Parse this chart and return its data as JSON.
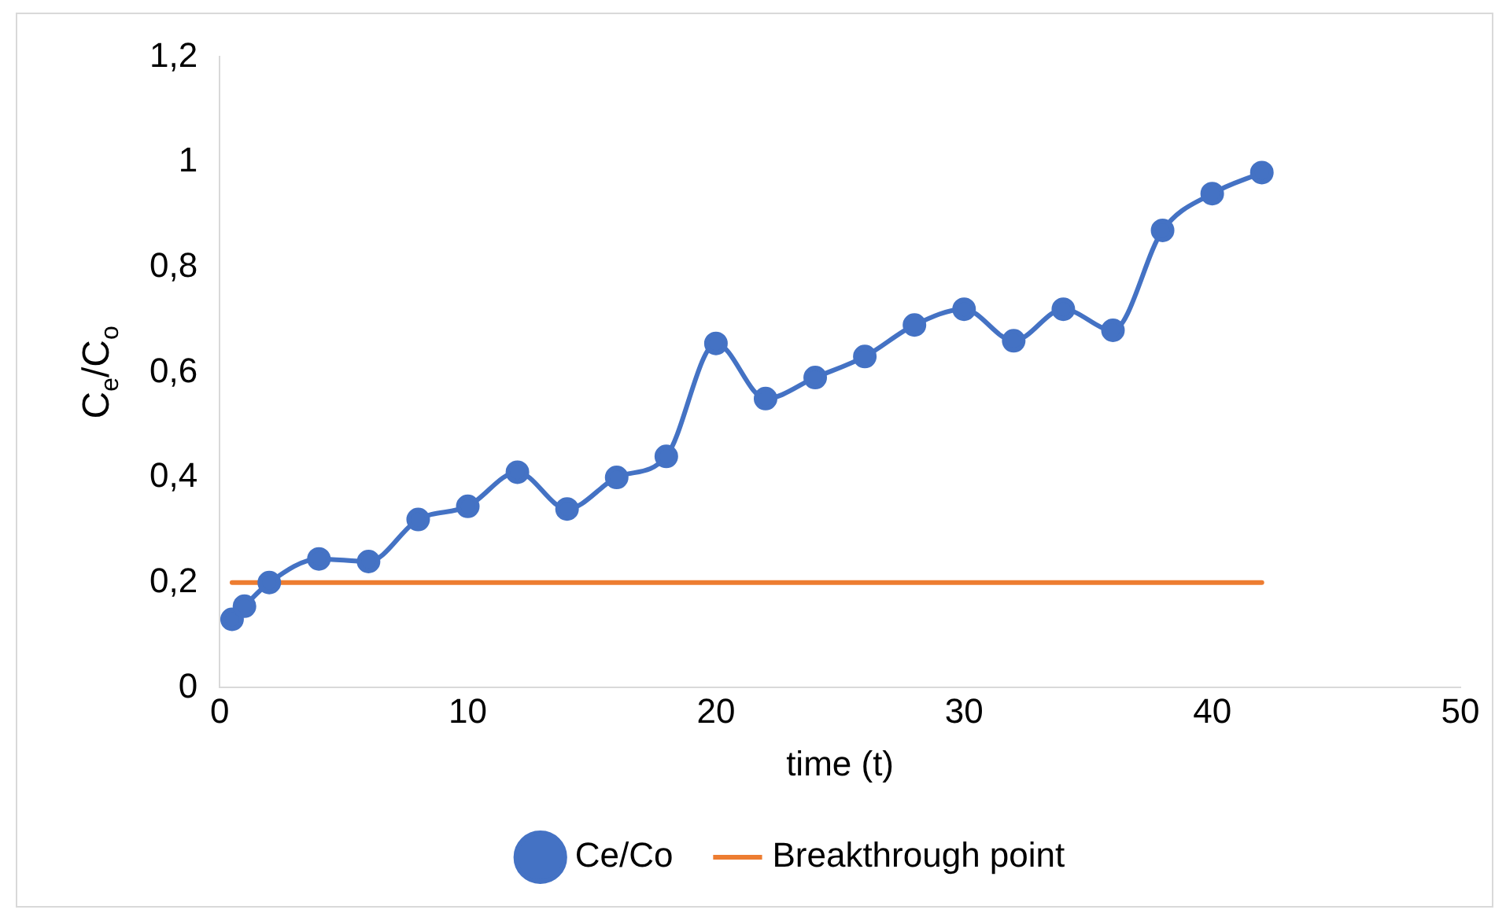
{
  "chart_data": {
    "type": "line",
    "xlabel": "time (t)",
    "ylabel": "C$_{e}$/C$_{o}$",
    "xlim": [
      0,
      50
    ],
    "xticks": [
      0,
      10,
      20,
      30,
      40,
      50
    ],
    "ylim": [
      0,
      1.2
    ],
    "yticks": [
      0,
      {
        "value": 0.2,
        "label": "0,2"
      },
      {
        "value": 0.4,
        "label": "0,4"
      },
      {
        "value": 0.6,
        "label": "0,6"
      },
      {
        "value": 0.8,
        "label": "0,8"
      },
      1,
      {
        "value": 1.2,
        "label": "1,2"
      }
    ],
    "grid": false,
    "legend": "bottom",
    "series": [
      {
        "name": "Ce/Co",
        "color": "#4472c4",
        "marker": "circle",
        "x": [
          0.5,
          1,
          2,
          4,
          6,
          8,
          10,
          12,
          14,
          16,
          18,
          20,
          22,
          24,
          26,
          28,
          30,
          32,
          34,
          36,
          38,
          40,
          42
        ],
        "values": [
          0.13,
          0.155,
          0.2,
          0.245,
          0.24,
          0.32,
          0.345,
          0.41,
          0.34,
          0.4,
          0.44,
          0.655,
          0.55,
          0.59,
          0.63,
          0.69,
          0.72,
          0.66,
          0.72,
          0.68,
          0.87,
          0.94,
          0.98
        ]
      },
      {
        "name": "Breakthrough point",
        "color": "#ed7d31",
        "marker": "none",
        "x": [
          0.5,
          42
        ],
        "values": [
          0.2,
          0.2
        ]
      }
    ]
  }
}
